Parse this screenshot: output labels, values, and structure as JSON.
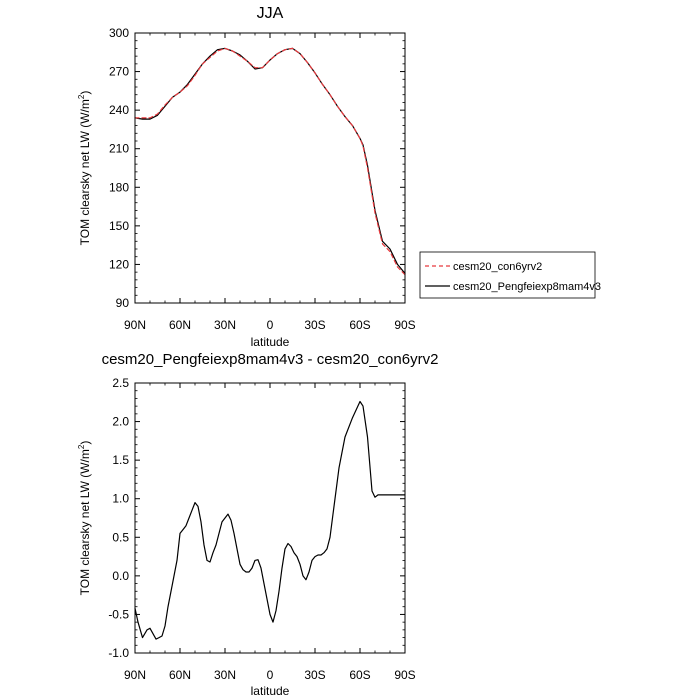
{
  "chart_data": [
    {
      "type": "line",
      "title": "JJA",
      "xlabel": "latitude",
      "ylabel": "TOM clearsky net LW (W/m2)",
      "ylabel_main": "TOM clearsky net LW (W/m",
      "ylabel_sup": "2",
      "ylabel_end": ")",
      "xlim": [
        90,
        -90
      ],
      "ylim": [
        90,
        300
      ],
      "xticks": [
        {
          "v": 90,
          "label": "90N"
        },
        {
          "v": 60,
          "label": "60N"
        },
        {
          "v": 30,
          "label": "30N"
        },
        {
          "v": 0,
          "label": "0"
        },
        {
          "v": -30,
          "label": "30S"
        },
        {
          "v": -60,
          "label": "60S"
        },
        {
          "v": -90,
          "label": "90S"
        }
      ],
      "yticks": [
        90,
        120,
        150,
        180,
        210,
        240,
        270,
        300
      ],
      "legend_position": "right",
      "series": [
        {
          "name": "cesm20_con6yrv2",
          "color": "#e8393d",
          "dash": "dashed",
          "x": [
            90,
            85,
            80,
            75,
            70,
            65,
            60,
            55,
            50,
            45,
            40,
            35,
            30,
            25,
            20,
            15,
            10,
            5,
            0,
            -5,
            -10,
            -15,
            -20,
            -25,
            -30,
            -35,
            -40,
            -45,
            -50,
            -55,
            -60,
            -62,
            -65,
            -70,
            -75,
            -80,
            -85,
            -90
          ],
          "y": [
            234,
            234,
            234,
            237,
            244,
            250,
            254,
            259,
            267,
            276,
            281,
            286,
            288,
            286,
            282,
            278,
            273,
            273,
            279,
            284,
            287,
            288,
            284,
            277,
            269,
            260,
            252,
            243,
            235,
            228,
            218,
            212,
            195,
            160,
            136,
            130,
            118,
            112
          ]
        },
        {
          "name": "cesm20_Pengfeiexp8mam4v3",
          "color": "#000000",
          "dash": "solid",
          "x": [
            90,
            85,
            80,
            75,
            70,
            65,
            60,
            55,
            50,
            45,
            40,
            35,
            30,
            25,
            20,
            15,
            10,
            5,
            0,
            -5,
            -10,
            -15,
            -20,
            -25,
            -30,
            -35,
            -40,
            -45,
            -50,
            -55,
            -60,
            -62,
            -65,
            -70,
            -75,
            -80,
            -85,
            -90
          ],
          "y": [
            234,
            233,
            233,
            236,
            243,
            250,
            254,
            260,
            268,
            276,
            282,
            287,
            288,
            286,
            283,
            278,
            272,
            273,
            279,
            284,
            287,
            288,
            284,
            277,
            269,
            260,
            252,
            243,
            235,
            228,
            218,
            213,
            197,
            162,
            138,
            132,
            120,
            113
          ]
        }
      ]
    },
    {
      "type": "line",
      "title": "cesm20_Pengfeiexp8mam4v3 - cesm20_con6yrv2",
      "xlabel": "latitude",
      "ylabel": "TOM clearsky net LW (W/m2)",
      "ylabel_main": "TOM clearsky net LW (W/m",
      "ylabel_sup": "2",
      "ylabel_end": ")",
      "xlim": [
        90,
        -90
      ],
      "ylim": [
        -1.0,
        2.5
      ],
      "xticks": [
        {
          "v": 90,
          "label": "90N"
        },
        {
          "v": 60,
          "label": "60N"
        },
        {
          "v": 30,
          "label": "30N"
        },
        {
          "v": 0,
          "label": "0"
        },
        {
          "v": -30,
          "label": "30S"
        },
        {
          "v": -60,
          "label": "60S"
        },
        {
          "v": -90,
          "label": "90S"
        }
      ],
      "yticks": [
        {
          "v": 2.5,
          "label": "2.5"
        },
        {
          "v": 2.0,
          "label": "2.0"
        },
        {
          "v": 1.5,
          "label": "1.5"
        },
        {
          "v": 1.0,
          "label": "1.0"
        },
        {
          "v": 0.5,
          "label": "0.5"
        },
        {
          "v": 0.0,
          "label": "0.0"
        },
        {
          "v": -0.5,
          "label": "-0.5"
        },
        {
          "v": -1.0,
          "label": "-1.0"
        }
      ],
      "series": [
        {
          "color": "#000000",
          "dash": "solid",
          "x": [
            90,
            88,
            85,
            82,
            80,
            78,
            76,
            74,
            72,
            70,
            68,
            65,
            62,
            60,
            58,
            56,
            54,
            52,
            50,
            48,
            46,
            44,
            42,
            40,
            38,
            36,
            34,
            32,
            30,
            28,
            26,
            24,
            22,
            20,
            18,
            16,
            14,
            12,
            10,
            8,
            6,
            4,
            2,
            0,
            -2,
            -4,
            -6,
            -8,
            -10,
            -12,
            -14,
            -16,
            -18,
            -20,
            -22,
            -24,
            -26,
            -28,
            -30,
            -32,
            -34,
            -36,
            -38,
            -40,
            -42,
            -44,
            -46,
            -48,
            -50,
            -55,
            -60,
            -62,
            -65,
            -68,
            -70,
            -72,
            -74,
            -76,
            -78,
            -80,
            -82,
            -84,
            -86,
            -88,
            -90
          ],
          "y": [
            -0.42,
            -0.6,
            -0.8,
            -0.7,
            -0.68,
            -0.75,
            -0.82,
            -0.8,
            -0.78,
            -0.65,
            -0.4,
            -0.1,
            0.2,
            0.55,
            0.6,
            0.65,
            0.75,
            0.85,
            0.95,
            0.9,
            0.7,
            0.4,
            0.2,
            0.18,
            0.3,
            0.4,
            0.55,
            0.7,
            0.75,
            0.8,
            0.72,
            0.55,
            0.35,
            0.15,
            0.08,
            0.05,
            0.05,
            0.1,
            0.2,
            0.21,
            0.1,
            -0.1,
            -0.3,
            -0.5,
            -0.6,
            -0.45,
            -0.2,
            0.1,
            0.35,
            0.42,
            0.38,
            0.3,
            0.25,
            0.15,
            0.0,
            -0.05,
            0.05,
            0.2,
            0.25,
            0.27,
            0.27,
            0.3,
            0.35,
            0.5,
            0.8,
            1.1,
            1.4,
            1.6,
            1.8,
            2.05,
            2.26,
            2.2,
            1.8,
            1.1,
            1.02,
            1.05,
            1.05,
            1.05,
            1.05,
            1.05,
            1.05,
            1.05,
            1.05,
            1.05,
            1.05
          ]
        }
      ]
    }
  ]
}
